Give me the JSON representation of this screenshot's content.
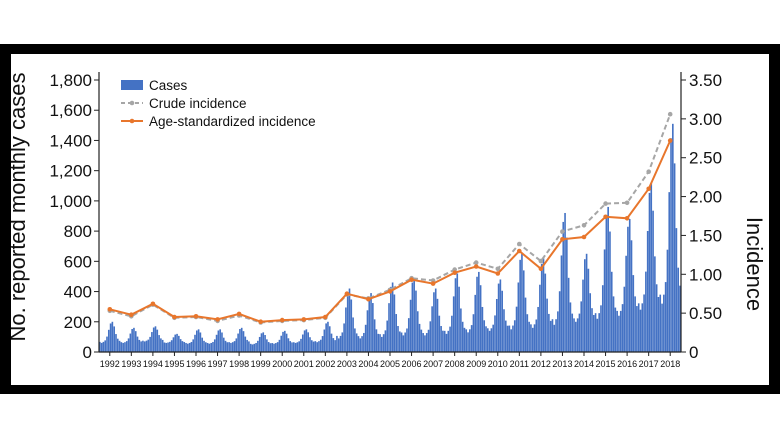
{
  "chart_data": {
    "type": "bar+line",
    "title": "",
    "ylabel": "No. reported monthly cases",
    "y2label": "Incidence",
    "ylim": [
      0,
      1800
    ],
    "y2lim": [
      0,
      3.5
    ],
    "yticks": [
      "0",
      "200",
      "400",
      "600",
      "800",
      "1,000",
      "1,200",
      "1,400",
      "1,600",
      "1,800"
    ],
    "y2ticks": [
      "0",
      "0.50",
      "1.00",
      "1.50",
      "2.00",
      "2.50",
      "3.00",
      "3.50"
    ],
    "years": [
      "1992",
      "1993",
      "1994",
      "1995",
      "1996",
      "1997",
      "1998",
      "1999",
      "2000",
      "2001",
      "2002",
      "2003",
      "2004",
      "2005",
      "2006",
      "2007",
      "2008",
      "2009",
      "2010",
      "2011",
      "2012",
      "2013",
      "2014",
      "2015",
      "2016",
      "2017",
      "2018"
    ],
    "legend": {
      "cases": "Cases",
      "crude": "Crude incidence",
      "age_std": "Age-standardized incidence",
      "position": "top-left"
    },
    "series": [
      {
        "name": "Cases",
        "kind": "bar",
        "annual_peak": [
          200,
          160,
          170,
          120,
          150,
          150,
          160,
          130,
          140,
          150,
          200,
          420,
          390,
          460,
          490,
          420,
          520,
          530,
          480,
          650,
          620,
          920,
          650,
          960,
          880,
          1120,
          1510
        ],
        "annual_trough": [
          60,
          60,
          70,
          60,
          55,
          55,
          60,
          50,
          55,
          60,
          65,
          90,
          90,
          100,
          110,
          110,
          120,
          130,
          140,
          150,
          160,
          180,
          200,
          220,
          240,
          280,
          320
        ]
      },
      {
        "name": "Crude incidence",
        "kind": "line",
        "style": "dashed",
        "values": [
          0.53,
          0.46,
          0.61,
          0.44,
          0.45,
          0.4,
          0.47,
          0.38,
          0.4,
          0.41,
          0.44,
          0.74,
          0.69,
          0.8,
          0.95,
          0.92,
          1.06,
          1.15,
          1.07,
          1.39,
          1.17,
          1.55,
          1.63,
          1.91,
          1.92,
          2.32,
          3.06
        ]
      },
      {
        "name": "Age-standardized incidence",
        "kind": "line",
        "style": "solid",
        "values": [
          0.55,
          0.48,
          0.62,
          0.45,
          0.46,
          0.42,
          0.49,
          0.39,
          0.41,
          0.42,
          0.45,
          0.75,
          0.68,
          0.78,
          0.93,
          0.88,
          1.02,
          1.1,
          1.01,
          1.3,
          1.07,
          1.45,
          1.48,
          1.74,
          1.72,
          2.1,
          2.72
        ]
      }
    ],
    "colors": {
      "bars": "#4472c4",
      "crude": "#a6a6a6",
      "age_std": "#e8762c",
      "frame": "#000000"
    }
  }
}
